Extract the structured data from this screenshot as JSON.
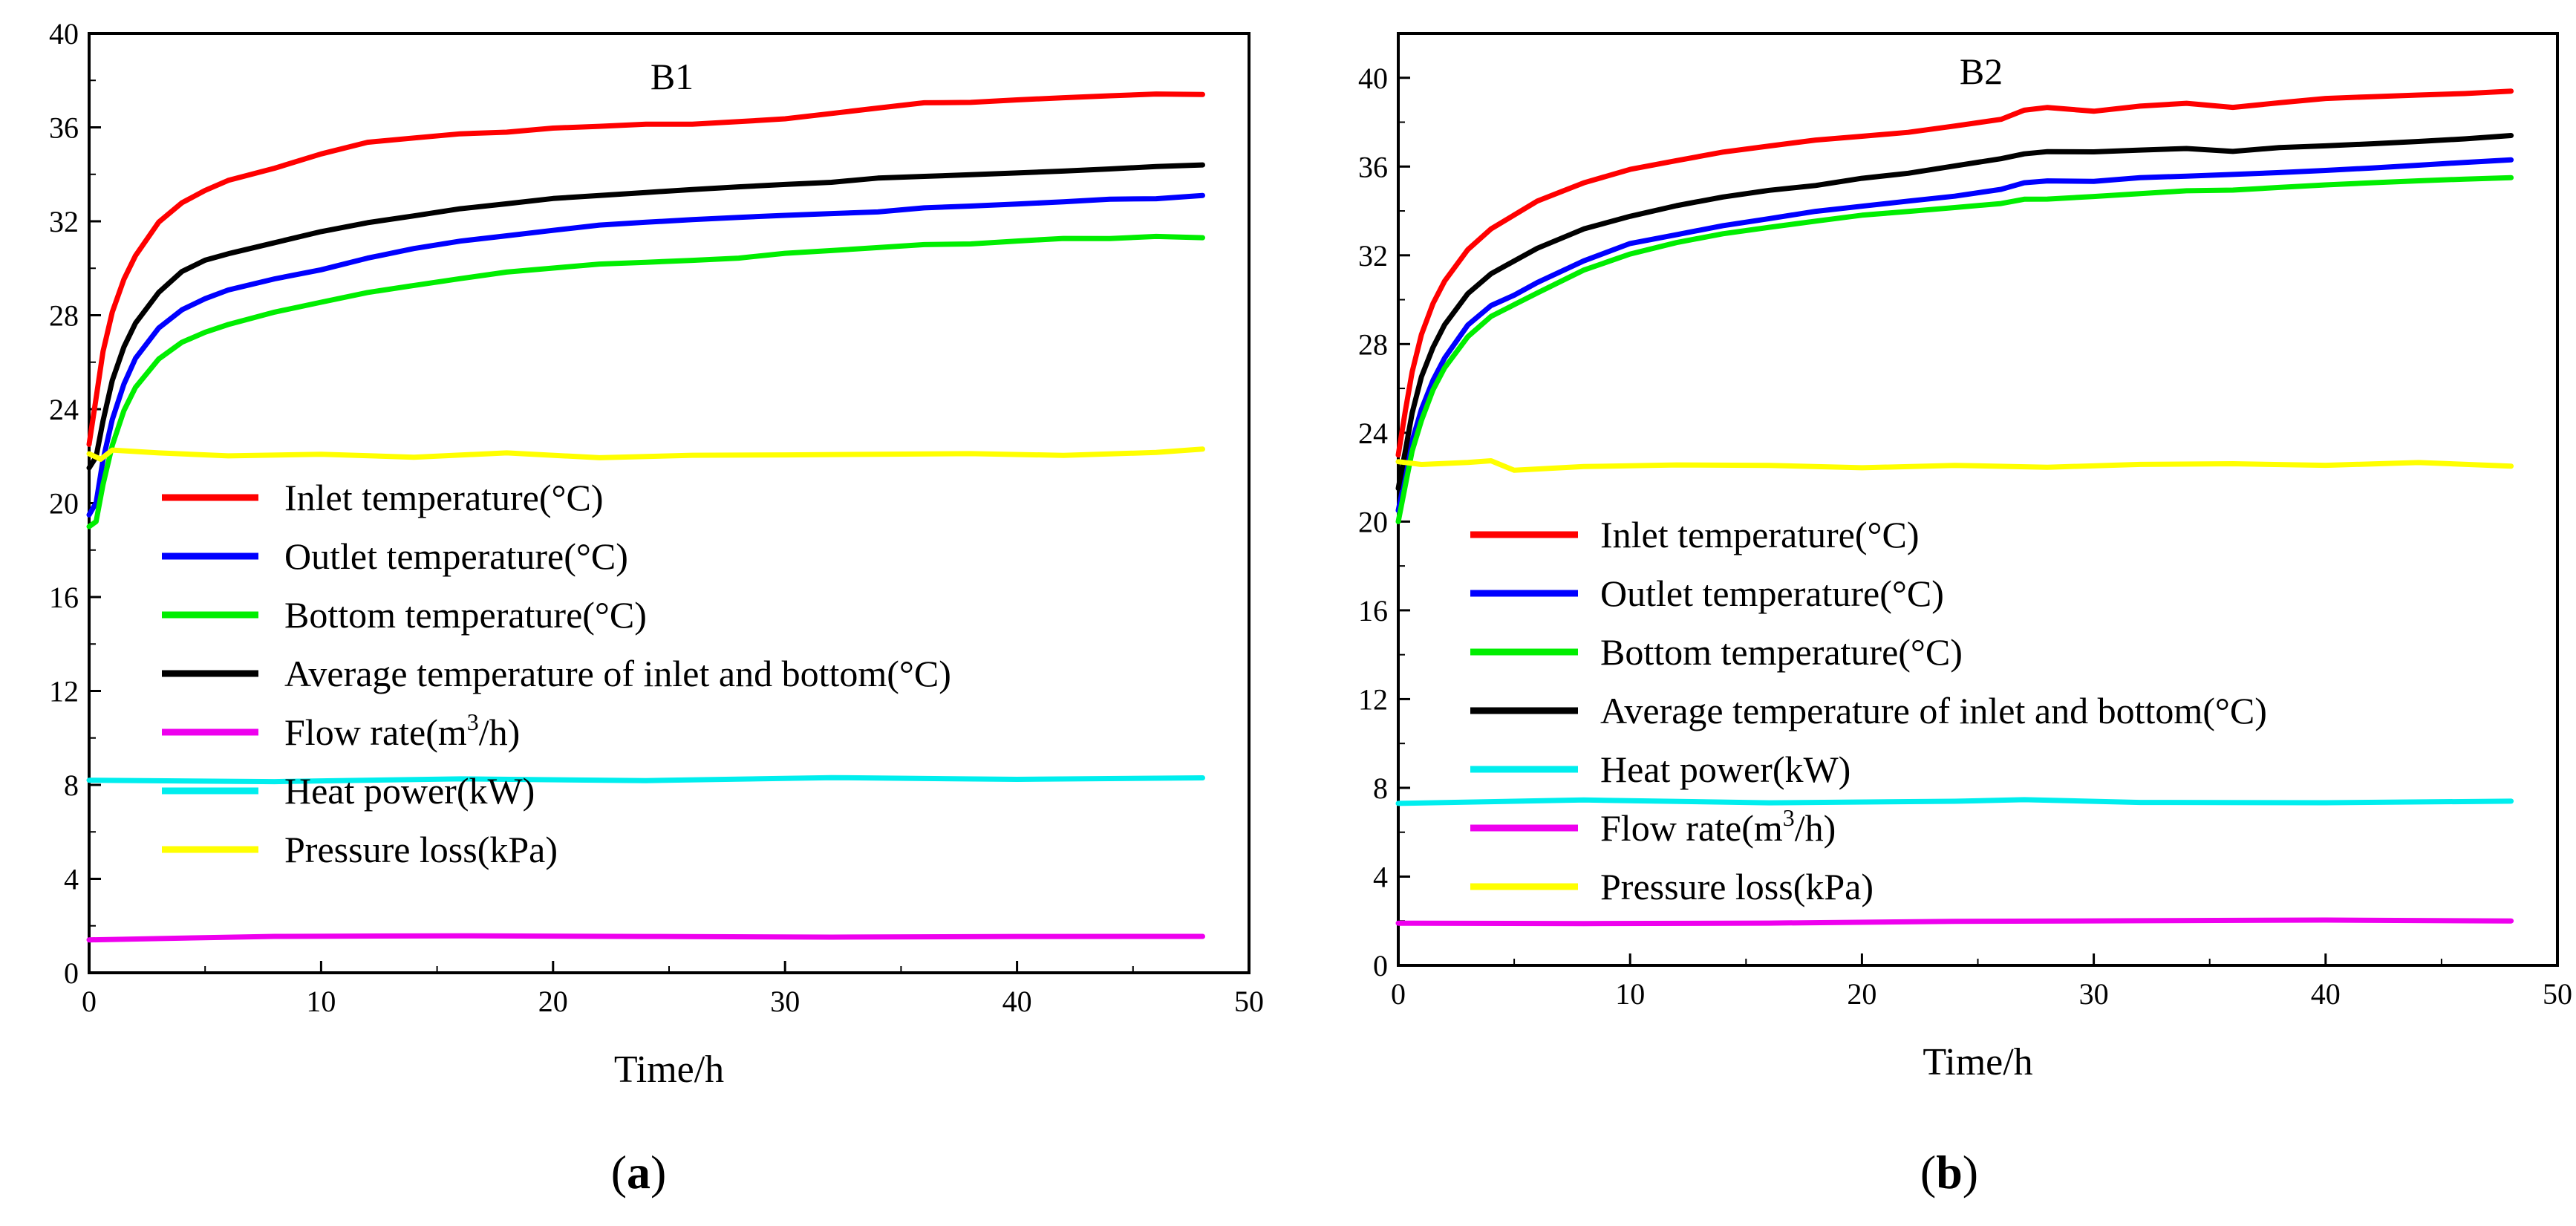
{
  "chart_data": [
    {
      "type": "line",
      "panel_label": "a",
      "title": "B1",
      "xlabel": "Time/h",
      "ylabel": "",
      "xlim": [
        0,
        50
      ],
      "ylim": [
        0,
        40
      ],
      "x_ticks": [
        "0",
        "10",
        "20",
        "30",
        "40",
        "50"
      ],
      "y_ticks": [
        "0",
        "4",
        "8",
        "12",
        "16",
        "20",
        "24",
        "28",
        "32",
        "36",
        "40"
      ],
      "legend_position": "center-left",
      "series": [
        {
          "name": "Inlet temperature(°C)",
          "color": "#ff0000",
          "x": [
            0,
            0.3,
            0.6,
            1,
            1.5,
            2,
            3,
            4,
            5,
            6,
            8,
            10,
            12,
            14,
            16,
            18,
            20,
            22,
            24,
            26,
            28,
            30,
            32,
            34,
            36,
            38,
            40,
            42,
            44,
            46,
            48
          ],
          "y": [
            22.5,
            24.5,
            26.5,
            28.2,
            29.6,
            30.6,
            32.0,
            32.8,
            33.3,
            33.7,
            34.2,
            34.8,
            35.3,
            35.5,
            35.7,
            35.8,
            36.0,
            36.1,
            36.2,
            36.2,
            36.3,
            36.4,
            36.6,
            36.8,
            37.0,
            37.0,
            37.1,
            37.2,
            37.3,
            37.4,
            37.4
          ]
        },
        {
          "name": "Outlet temperature(°C)",
          "color": "#0000ff",
          "x": [
            0,
            0.3,
            0.6,
            1,
            1.5,
            2,
            3,
            4,
            5,
            6,
            8,
            10,
            12,
            14,
            16,
            18,
            20,
            22,
            24,
            26,
            28,
            30,
            32,
            34,
            36,
            38,
            40,
            42,
            44,
            46,
            48
          ],
          "y": [
            19.5,
            20.0,
            21.8,
            23.5,
            25.0,
            26.1,
            27.4,
            28.2,
            28.7,
            29.1,
            29.6,
            30.0,
            30.5,
            30.9,
            31.2,
            31.4,
            31.6,
            31.8,
            31.9,
            32.0,
            32.1,
            32.2,
            32.3,
            32.4,
            32.6,
            32.7,
            32.8,
            32.9,
            33.0,
            33.0,
            33.1
          ]
        },
        {
          "name": "Bottom temperature(°C)",
          "color": "#00ee00",
          "x": [
            0,
            0.3,
            0.6,
            1,
            1.5,
            2,
            3,
            4,
            5,
            6,
            8,
            10,
            12,
            14,
            16,
            18,
            20,
            22,
            24,
            26,
            28,
            30,
            32,
            34,
            36,
            38,
            40,
            42,
            44,
            46,
            48
          ],
          "y": [
            19.0,
            19.2,
            20.8,
            22.5,
            24.0,
            25.0,
            26.2,
            26.9,
            27.3,
            27.6,
            28.1,
            28.5,
            28.9,
            29.2,
            29.5,
            29.8,
            30.0,
            30.2,
            30.3,
            30.4,
            30.5,
            30.7,
            30.8,
            30.9,
            31.0,
            31.0,
            31.1,
            31.2,
            31.2,
            31.3,
            31.3
          ]
        },
        {
          "name": "Average temperature of inlet and bottom(°C)",
          "color": "#000000",
          "x": [
            0,
            0.3,
            0.6,
            1,
            1.5,
            2,
            3,
            4,
            5,
            6,
            8,
            10,
            12,
            14,
            16,
            18,
            20,
            22,
            24,
            26,
            28,
            30,
            32,
            34,
            36,
            38,
            40,
            42,
            44,
            46,
            48
          ],
          "y": [
            21.5,
            22.0,
            23.5,
            25.2,
            26.6,
            27.6,
            28.9,
            29.8,
            30.3,
            30.6,
            31.1,
            31.6,
            32.0,
            32.3,
            32.6,
            32.8,
            33.0,
            33.1,
            33.2,
            33.3,
            33.4,
            33.5,
            33.6,
            33.8,
            33.9,
            34.0,
            34.1,
            34.2,
            34.3,
            34.4,
            34.4
          ]
        },
        {
          "name": "Flow rate(m3/h)",
          "name_main": "Flow rate(m",
          "name_sup": "3",
          "name_end": "/h)",
          "color": "#ee00ee",
          "x": [
            0,
            8,
            16,
            24,
            32,
            40,
            48
          ],
          "y": [
            1.4,
            1.5,
            1.55,
            1.55,
            1.55,
            1.6,
            1.55
          ]
        },
        {
          "name": "Heat power(kW)",
          "color": "#00eeee",
          "x": [
            0,
            8,
            16,
            24,
            32,
            40,
            48
          ],
          "y": [
            8.2,
            8.2,
            8.3,
            8.2,
            8.3,
            8.2,
            8.3
          ]
        },
        {
          "name": "Pressure loss(kPa)",
          "color": "#ffff00",
          "x": [
            0,
            0.5,
            1,
            3,
            6,
            10,
            14,
            18,
            22,
            26,
            30,
            34,
            38,
            42,
            46,
            48
          ],
          "y": [
            22.1,
            21.8,
            22.2,
            22.1,
            22.0,
            22.1,
            22.0,
            22.2,
            22.0,
            22.1,
            22.1,
            22.1,
            22.1,
            22.0,
            22.1,
            22.3
          ]
        }
      ]
    },
    {
      "type": "line",
      "panel_label": "b",
      "title": "B2",
      "xlabel": "Time/h",
      "ylabel": "",
      "xlim": [
        0,
        50
      ],
      "ylim": [
        0,
        42
      ],
      "x_ticks": [
        "0",
        "10",
        "20",
        "30",
        "40",
        "50"
      ],
      "y_ticks": [
        "0",
        "4",
        "8",
        "12",
        "16",
        "20",
        "24",
        "28",
        "32",
        "36",
        "40"
      ],
      "legend_position": "center-left",
      "series": [
        {
          "name": "Inlet temperature(°C)",
          "color": "#ff0000",
          "x": [
            0,
            0.3,
            0.6,
            1,
            1.5,
            2,
            3,
            4,
            5,
            6,
            8,
            10,
            12,
            14,
            16,
            18,
            20,
            22,
            24,
            26,
            27,
            28,
            30,
            32,
            34,
            36,
            38,
            40,
            42,
            44,
            46,
            48
          ],
          "y": [
            23.0,
            25.0,
            26.8,
            28.5,
            29.9,
            30.9,
            32.3,
            33.2,
            33.8,
            34.4,
            35.2,
            35.8,
            36.2,
            36.6,
            36.9,
            37.2,
            37.4,
            37.6,
            37.9,
            38.2,
            38.6,
            38.7,
            38.5,
            38.7,
            38.8,
            38.6,
            38.8,
            39.0,
            39.1,
            39.2,
            39.3,
            39.4
          ]
        },
        {
          "name": "Outlet temperature(°C)",
          "color": "#0000ff",
          "x": [
            0,
            0.3,
            0.6,
            1,
            1.5,
            2,
            3,
            4,
            5,
            6,
            8,
            10,
            12,
            14,
            16,
            18,
            20,
            22,
            24,
            26,
            27,
            28,
            30,
            32,
            34,
            36,
            38,
            40,
            42,
            44,
            46,
            48
          ],
          "y": [
            20.5,
            22.0,
            23.6,
            25.0,
            26.3,
            27.3,
            28.8,
            29.7,
            30.2,
            30.8,
            31.8,
            32.6,
            33.0,
            33.4,
            33.7,
            34.0,
            34.2,
            34.4,
            34.6,
            34.9,
            35.2,
            35.3,
            35.3,
            35.5,
            35.6,
            35.7,
            35.8,
            35.9,
            36.0,
            36.1,
            36.2,
            36.3
          ]
        },
        {
          "name": "Bottom temperature(°C)",
          "color": "#00ee00",
          "x": [
            0,
            0.3,
            0.6,
            1,
            1.5,
            2,
            3,
            4,
            5,
            6,
            8,
            10,
            12,
            14,
            16,
            18,
            20,
            22,
            24,
            26,
            27,
            28,
            30,
            32,
            34,
            36,
            38,
            40,
            42,
            44,
            46,
            48
          ],
          "y": [
            20.0,
            21.6,
            23.2,
            24.6,
            26.0,
            27.0,
            28.4,
            29.3,
            29.8,
            30.3,
            31.3,
            32.0,
            32.5,
            32.9,
            33.2,
            33.5,
            33.8,
            34.0,
            34.2,
            34.4,
            34.6,
            34.6,
            34.7,
            34.8,
            34.9,
            34.9,
            35.0,
            35.1,
            35.2,
            35.3,
            35.4,
            35.5
          ]
        },
        {
          "name": "Average temperature of inlet and bottom(°C)",
          "color": "#000000",
          "x": [
            0,
            0.3,
            0.6,
            1,
            1.5,
            2,
            3,
            4,
            5,
            6,
            8,
            10,
            12,
            14,
            16,
            18,
            20,
            22,
            24,
            26,
            27,
            28,
            30,
            32,
            34,
            36,
            38,
            40,
            42,
            44,
            46,
            48
          ],
          "y": [
            21.5,
            23.2,
            24.9,
            26.5,
            27.8,
            28.8,
            30.2,
            31.1,
            31.7,
            32.3,
            33.2,
            33.8,
            34.3,
            34.7,
            35.0,
            35.2,
            35.5,
            35.7,
            36.0,
            36.3,
            36.5,
            36.6,
            36.6,
            36.7,
            36.8,
            36.7,
            36.9,
            37.0,
            37.1,
            37.2,
            37.3,
            37.4
          ]
        },
        {
          "name": "Heat power(kW)",
          "color": "#00eeee",
          "x": [
            0,
            8,
            16,
            24,
            27,
            32,
            40,
            48
          ],
          "y": [
            7.3,
            7.4,
            7.3,
            7.4,
            7.5,
            7.4,
            7.4,
            7.4
          ]
        },
        {
          "name": "Flow rate(m3/h)",
          "name_main": "Flow rate(m",
          "name_sup": "3",
          "name_end": "/h)",
          "color": "#ee00ee",
          "x": [
            0,
            8,
            16,
            24,
            32,
            40,
            48
          ],
          "y": [
            1.9,
            1.95,
            1.95,
            2.0,
            2.0,
            2.0,
            2.0
          ]
        },
        {
          "name": "Pressure loss(kPa)",
          "color": "#ffff00",
          "x": [
            0,
            1,
            3,
            4,
            5,
            8,
            12,
            16,
            20,
            24,
            28,
            32,
            36,
            40,
            44,
            48
          ],
          "y": [
            22.7,
            22.5,
            22.6,
            22.7,
            22.3,
            22.5,
            22.6,
            22.6,
            22.5,
            22.6,
            22.5,
            22.6,
            22.6,
            22.5,
            22.6,
            22.5
          ]
        }
      ]
    }
  ]
}
